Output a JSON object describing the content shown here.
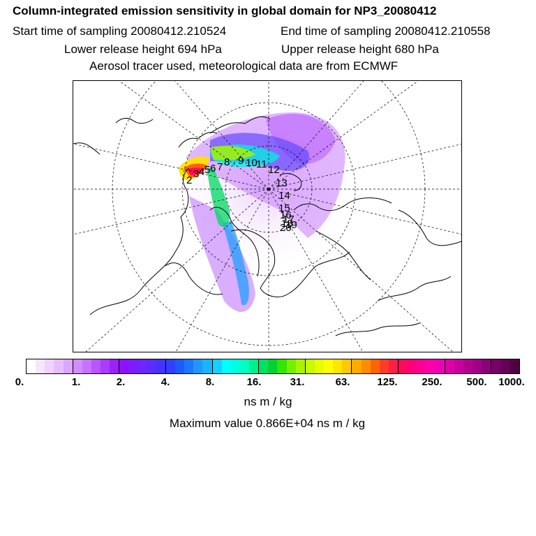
{
  "header": {
    "title": "Column-integrated emission sensitivity in global domain for NP3_20080412",
    "start_time": "Start time of sampling 20080412.210524",
    "end_time": "End time of sampling 20080412.210558",
    "lower_release": "Lower release height  694 hPa",
    "upper_release": "Upper release height  680 hPa",
    "tracer_info": "Aerosol tracer used, meteorological data are from ECMWF"
  },
  "map": {
    "projection": "north-polar-stereographic",
    "graticule": "dashed",
    "trajectory_labels": [
      "2",
      "3",
      "4",
      "5",
      "6",
      "7",
      "8",
      "9",
      "10",
      "11",
      "12",
      "13",
      "14",
      "15",
      "16",
      "17",
      "18",
      "19",
      "20"
    ]
  },
  "colorbar": {
    "colors": [
      "#ffffff",
      "#f6e6ff",
      "#efd2ff",
      "#e6beff",
      "#dca6ff",
      "#d08cff",
      "#c672ff",
      "#b955ff",
      "#a93cff",
      "#9a22ff",
      "#8d10ff",
      "#7d1bff",
      "#6c26ff",
      "#5a2cff",
      "#4632ff",
      "#3040ff",
      "#1e5aff",
      "#1a78ff",
      "#2196ff",
      "#19b4ff",
      "#14d2ff",
      "#00ffff",
      "#00ffe0",
      "#00ffbe",
      "#00f08c",
      "#00e064",
      "#00d232",
      "#32e600",
      "#73f000",
      "#a5f500",
      "#c8fa00",
      "#e6ff00",
      "#ffff00",
      "#ffe600",
      "#ffc800",
      "#ffaa00",
      "#ff8c00",
      "#ff6400",
      "#ff3c28",
      "#ff1e46",
      "#ff0a5a",
      "#ff0078",
      "#ff0096",
      "#ff00aa",
      "#f000b4",
      "#dc00aa",
      "#c8009b",
      "#b40091",
      "#a00087",
      "#8c0078",
      "#780069",
      "#640055",
      "#500041"
    ],
    "tick_labels": [
      "0.",
      "1.",
      "2.",
      "4.",
      "8.",
      "16.",
      "31.",
      "63.",
      "125.",
      "250.",
      "500.",
      "1000."
    ],
    "units": "ns m / kg"
  },
  "maximum": "Maximum value  0.866E+04 ns m / kg"
}
